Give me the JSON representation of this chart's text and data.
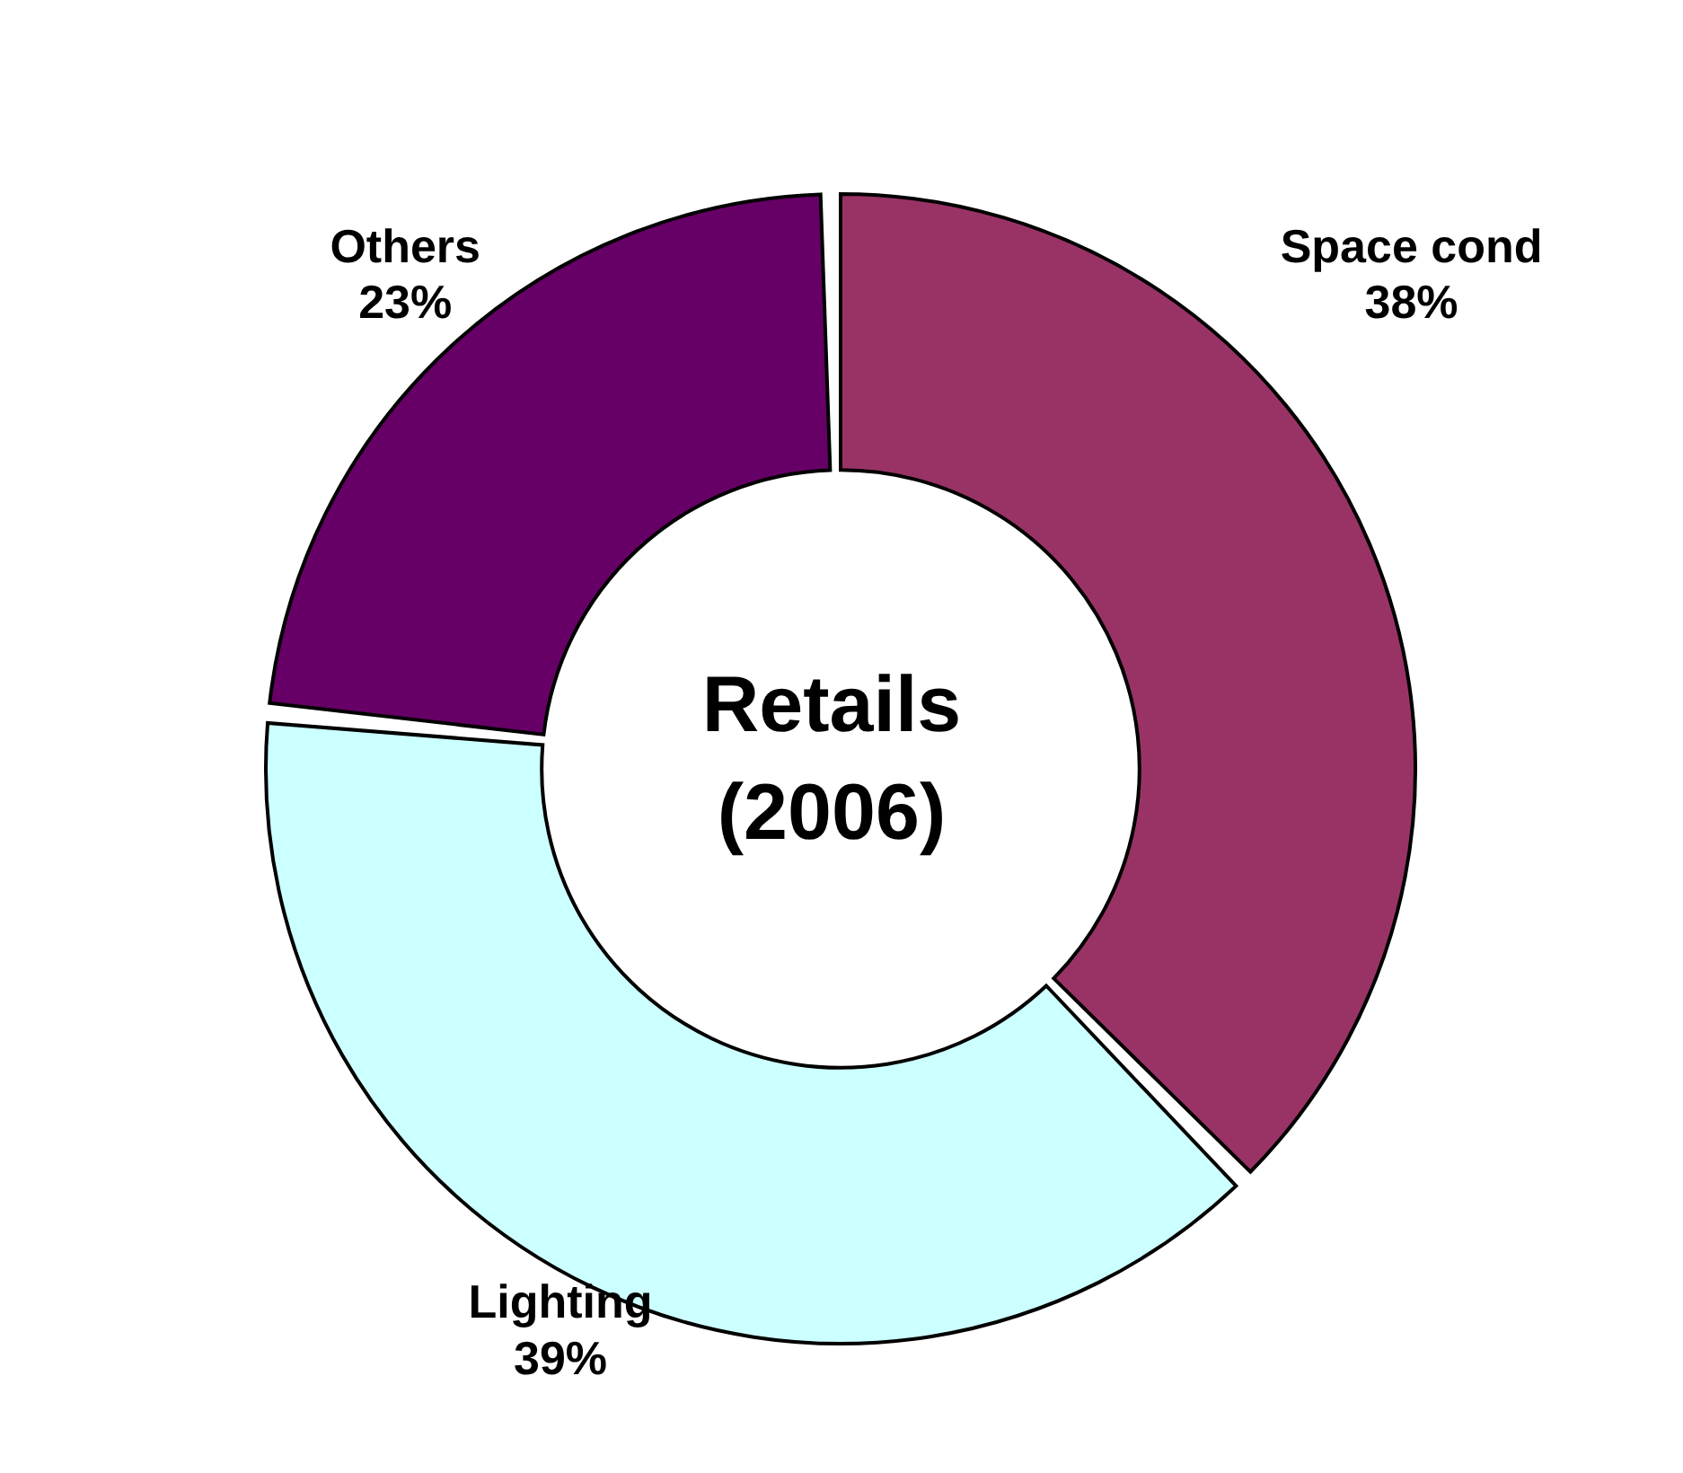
{
  "chart_data": {
    "type": "donut",
    "title": "Retails (2006)",
    "categories": [
      "Space cond",
      "Lighting",
      "Others"
    ],
    "values": [
      38,
      39,
      23
    ],
    "value_labels": [
      "38%",
      "39%",
      "23%"
    ],
    "colors": [
      "#993366",
      "#ccffff",
      "#660066"
    ]
  }
}
